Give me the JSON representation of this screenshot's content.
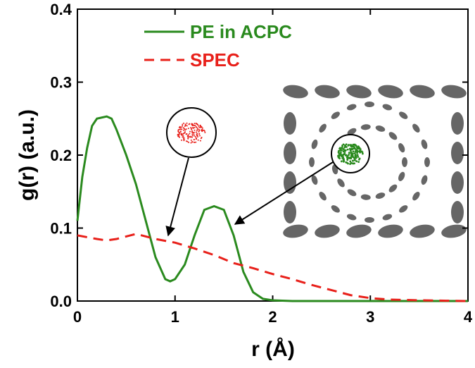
{
  "chart_data": {
    "type": "line",
    "xlabel": "r (Å)",
    "ylabel": "g(r) (a.u.)",
    "xlim": [
      0,
      4
    ],
    "xticks": [
      0,
      1,
      2,
      3,
      4
    ],
    "ylim": [
      0,
      0.4
    ],
    "yticks": [
      {
        "value": 0,
        "label": "0.0"
      },
      0.1,
      0.2,
      0.3,
      0.4
    ],
    "legend": "upper left",
    "series": [
      {
        "name": "PE in ACPC",
        "color": "#2a8a1e",
        "dash": "solid",
        "x": [
          0,
          0.05,
          0.1,
          0.15,
          0.2,
          0.3,
          0.35,
          0.4,
          0.5,
          0.6,
          0.7,
          0.8,
          0.9,
          0.95,
          1.0,
          1.1,
          1.2,
          1.3,
          1.4,
          1.5,
          1.6,
          1.7,
          1.8,
          1.9,
          2.0,
          2.2,
          4
        ],
        "values": [
          0.11,
          0.17,
          0.21,
          0.24,
          0.25,
          0.253,
          0.25,
          0.235,
          0.2,
          0.16,
          0.11,
          0.06,
          0.03,
          0.027,
          0.03,
          0.05,
          0.09,
          0.125,
          0.13,
          0.125,
          0.09,
          0.04,
          0.012,
          0.003,
          0.001,
          0,
          0
        ]
      },
      {
        "name": "SPEC",
        "color": "#e8201a",
        "dash": "dashed",
        "x": [
          0,
          0.2,
          0.3,
          0.4,
          0.6,
          0.8,
          1.0,
          1.2,
          1.4,
          1.6,
          1.8,
          2.0,
          2.2,
          2.4,
          2.6,
          2.8,
          3.0,
          3.2,
          3.5,
          4
        ],
        "values": [
          0.09,
          0.085,
          0.083,
          0.085,
          0.092,
          0.085,
          0.08,
          0.072,
          0.063,
          0.052,
          0.045,
          0.037,
          0.03,
          0.022,
          0.015,
          0.008,
          0.004,
          0.002,
          0.001,
          0
        ]
      }
    ]
  }
}
